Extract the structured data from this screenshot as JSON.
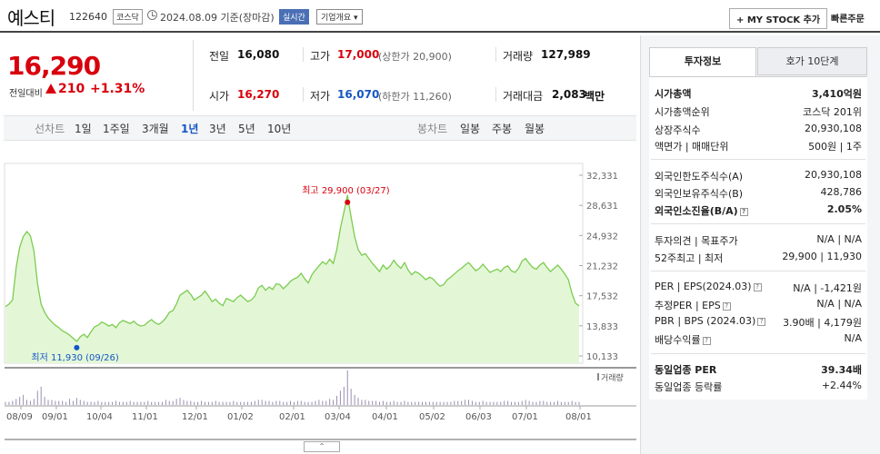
{
  "header": {
    "stock_name": "예스티",
    "stock_code": "122640",
    "market": "코스닥",
    "base_date": "2024.08.09 기준(장마감)",
    "realtime": "실시간",
    "company_overview": "기업개요 ▾",
    "mystock": "+ MY STOCK 추가",
    "quick_order": "빠른주문"
  },
  "price": {
    "current": "16,290",
    "change_label": "전일대비",
    "change": "210",
    "change_pct": "+1.31%",
    "up_color": "#d8000d"
  },
  "metrics": {
    "prev_close_label": "전일",
    "prev_close": "16,080",
    "high_label": "고가",
    "high": "17,000",
    "upper_limit": "(상한가 20,900)",
    "volume_label": "거래량",
    "volume": "127,989",
    "open_label": "시가",
    "open": "16,270",
    "low_label": "저가",
    "low": "16,070",
    "lower_limit": "(하한가 11,260)",
    "amount_label": "거래대금",
    "amount": "2,083",
    "amount_unit": "백만"
  },
  "period": {
    "line_label": "선차트",
    "tabs": [
      "1일",
      "1주일",
      "3개월",
      "1년",
      "3년",
      "5년",
      "10년"
    ],
    "selected": "1년",
    "candle_label": "봉차트",
    "candle_tabs": [
      "일봉",
      "주봉",
      "월봉"
    ]
  },
  "right_panel": {
    "tabs": [
      "투자정보",
      "호가 10단계"
    ],
    "rows1": [
      {
        "k": "시가총액",
        "v": "3,410억원"
      },
      {
        "k": "시가총액순위",
        "v": "코스닥 201위"
      },
      {
        "k": "상장주식수",
        "v": "20,930,108"
      },
      {
        "k": "액면가 | 매매단위",
        "v": "500원 | 1주"
      }
    ],
    "rows2": [
      {
        "k": "외국인한도주식수(A)",
        "v": "20,930,108"
      },
      {
        "k": "외국인보유주식수(B)",
        "v": "428,786"
      },
      {
        "k": "외국인소진율(B/A)",
        "v": "2.05%"
      }
    ],
    "rows3": [
      {
        "k": "투자의견 | 목표주가",
        "v": "N/A | N/A"
      },
      {
        "k": "52주최고 | 최저",
        "v": "29,900 | 11,930"
      }
    ],
    "rows4": [
      {
        "k": "PER | EPS(2024.03)",
        "v": "N/A | -1,421원"
      },
      {
        "k": "추정PER | EPS",
        "v": "N/A | N/A"
      },
      {
        "k": "PBR | BPS (2024.03)",
        "v": "3.90배 | 4,179원"
      },
      {
        "k": "배당수익률",
        "v": "N/A"
      }
    ],
    "rows5": [
      {
        "k": "동일업종 PER",
        "v": "39.34배"
      },
      {
        "k": "동일업종 등락률",
        "v": "+2.44%"
      }
    ]
  },
  "chart_data": {
    "type": "area",
    "y_ticks": [
      "32,331",
      "28,631",
      "24,932",
      "21,232",
      "17,532",
      "13,833",
      "10,133"
    ],
    "ylim": [
      10133,
      32331
    ],
    "x_ticks": [
      "08/09",
      "09/01",
      "10/04",
      "11/01",
      "12/01",
      "01/02",
      "02/01",
      "03/04",
      "04/01",
      "05/02",
      "06/03",
      "07/01",
      "08/01"
    ],
    "high_label": "최고 29,900 (03/27)",
    "low_label": "최저 11,930 (09/26)",
    "volume_label": "거래량",
    "prices": [
      16200,
      16500,
      17000,
      21000,
      23500,
      24800,
      25400,
      24900,
      23000,
      19000,
      16500,
      15500,
      14800,
      14300,
      13900,
      13600,
      13200,
      13000,
      12700,
      12300,
      11930,
      12500,
      12800,
      12400,
      13100,
      13700,
      13900,
      14300,
      14100,
      13800,
      14000,
      13600,
      14200,
      14500,
      14300,
      14100,
      14400,
      14000,
      13800,
      13900,
      14300,
      14600,
      14200,
      14000,
      14300,
      14800,
      15500,
      15700,
      16500,
      17600,
      17900,
      18200,
      17700,
      17000,
      17300,
      17600,
      18100,
      17500,
      16800,
      17100,
      16600,
      16300,
      17200,
      17000,
      16800,
      17300,
      17600,
      17200,
      16800,
      17000,
      17500,
      18500,
      18800,
      18200,
      18600,
      18300,
      19000,
      18900,
      18400,
      18800,
      19300,
      19600,
      19800,
      20300,
      19600,
      19100,
      20100,
      20700,
      21200,
      21700,
      21400,
      22000,
      21500,
      23200,
      25800,
      27800,
      29900,
      27200,
      24800,
      23200,
      22500,
      22700,
      22100,
      21500,
      21000,
      20500,
      21300,
      20800,
      21200,
      21900,
      21300,
      20900,
      21600,
      20700,
      20100,
      20500,
      20300,
      19900,
      19500,
      19800,
      19600,
      19100,
      18700,
      18900,
      19500,
      19800,
      20200,
      20600,
      20900,
      21300,
      21600,
      21100,
      20600,
      20900,
      21400,
      20900,
      20400,
      20600,
      20800,
      20500,
      21000,
      21200,
      20600,
      20400,
      20900,
      21800,
      22100,
      21500,
      21000,
      20800,
      21300,
      21600,
      21000,
      20500,
      20900,
      21300,
      20800,
      20200,
      19500,
      17800,
      16600,
      16290
    ],
    "volumes": [
      3,
      3,
      4,
      6,
      8,
      10,
      5,
      4,
      6,
      14,
      18,
      8,
      5,
      5,
      4,
      4,
      4,
      3,
      6,
      4,
      7,
      5,
      4,
      3,
      3,
      3,
      4,
      3,
      3,
      3,
      3,
      4,
      3,
      3,
      3,
      4,
      3,
      3,
      3,
      3,
      4,
      3,
      3,
      3,
      3,
      5,
      4,
      4,
      6,
      7,
      5,
      4,
      4,
      3,
      3,
      4,
      3,
      3,
      3,
      4,
      3,
      3,
      3,
      3,
      4,
      3,
      3,
      3,
      3,
      3,
      4,
      5,
      5,
      4,
      4,
      3,
      4,
      4,
      3,
      3,
      4,
      3,
      4,
      4,
      3,
      3,
      3,
      4,
      5,
      4,
      4,
      6,
      5,
      9,
      14,
      18,
      34,
      16,
      10,
      7,
      5,
      5,
      4,
      4,
      4,
      3,
      4,
      3,
      3,
      4,
      3,
      3,
      4,
      3,
      3,
      3,
      3,
      3,
      3,
      3,
      3,
      3,
      3,
      3,
      3,
      3,
      4,
      4,
      4,
      5,
      5,
      4,
      3,
      3,
      4,
      3,
      3,
      3,
      3,
      3,
      4,
      4,
      3,
      3,
      3,
      4,
      5,
      4,
      3,
      3,
      4,
      4,
      3,
      3,
      3,
      4,
      3,
      3,
      3,
      4,
      3,
      3
    ]
  }
}
